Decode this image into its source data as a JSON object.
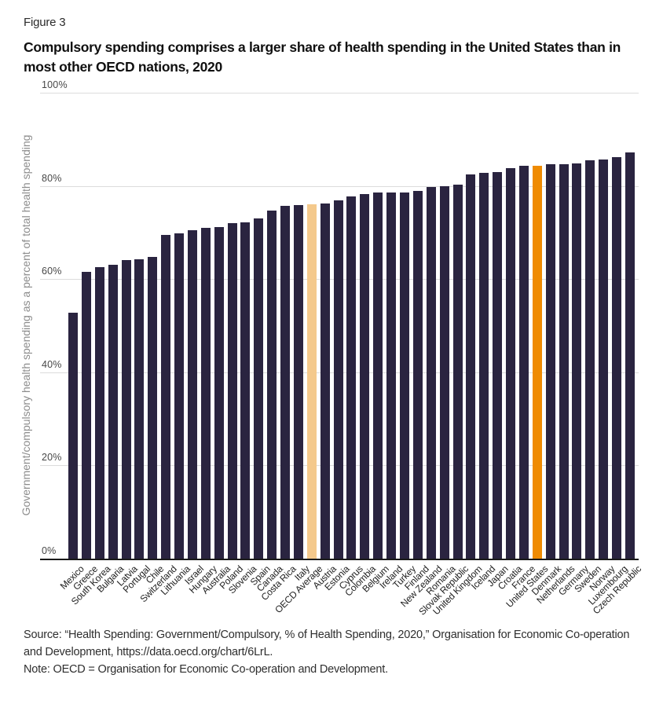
{
  "figure_label": "Figure 3",
  "title": "Compulsory spending comprises a larger share of health spending in the United States than in most other OECD nations, 2020",
  "source_text": "Source: “Health Spending: Government/Compulsory, % of Health Spending, 2020,” Organisation for Economic Co-operation and Development, https://data.oecd.org/chart/6LrL.",
  "note_text": "Note: OECD = Organisation for Economic Co-operation and Development.",
  "colors": {
    "bar_default": "#2A2440",
    "bar_oecd_average": "#F4C98C",
    "bar_united_states": "#EF8B03",
    "gridline": "#DCDCDC",
    "axis_line": "#1A1A1A"
  },
  "chart_data": {
    "type": "bar",
    "title": "Compulsory spending comprises a larger share of health spending in the United States than in most other OECD nations, 2020",
    "xlabel": "",
    "ylabel": "Government/compulsory health spending as a percent of total health spending",
    "ylim": [
      0,
      100
    ],
    "grid": true,
    "legend_position": "none",
    "yticks": [
      0,
      20,
      40,
      60,
      80,
      100
    ],
    "ytick_labels": [
      "0%",
      "20%",
      "40%",
      "60%",
      "80%",
      "100%"
    ],
    "categories": [
      "Mexico",
      "Greece",
      "South Korea",
      "Bulgaria",
      "Latvia",
      "Portugal",
      "Chile",
      "Switzerland",
      "Lithuania",
      "Israel",
      "Hungary",
      "Australia",
      "Poland",
      "Slovenia",
      "Spain",
      "Canada",
      "Costa Rica",
      "Italy",
      "OECD Average",
      "Austria",
      "Estonia",
      "Cyprus",
      "Colombia",
      "Belgium",
      "Ireland",
      "Turkey",
      "Finland",
      "New Zealand",
      "Romania",
      "Slovak Republic",
      "United Kingdom",
      "Iceland",
      "Japan",
      "Croatia",
      "France",
      "United States",
      "Denmark",
      "Netherlands",
      "Germany",
      "Sweden",
      "Norway",
      "Luxembourg",
      "Czech Republic"
    ],
    "values": [
      52.7,
      61.6,
      62.5,
      63.0,
      64.0,
      64.2,
      64.7,
      69.5,
      69.8,
      70.5,
      71.0,
      71.2,
      72.0,
      72.2,
      73.0,
      74.7,
      75.7,
      75.9,
      76.0,
      76.2,
      76.9,
      77.8,
      78.3,
      78.5,
      78.5,
      78.6,
      78.9,
      79.7,
      80.0,
      80.3,
      82.4,
      82.8,
      82.9,
      83.8,
      84.4,
      84.4,
      84.7,
      84.7,
      84.8,
      85.5,
      85.6,
      86.2,
      87.2
    ],
    "highlighted_bars": {
      "OECD Average": "#F4C98C",
      "United States": "#EF8B03"
    }
  }
}
